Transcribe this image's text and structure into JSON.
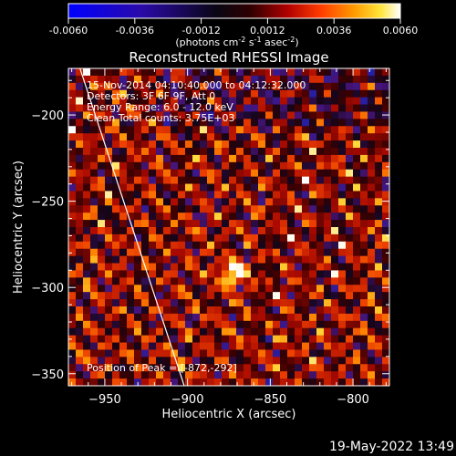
{
  "colorbar": {
    "ticks": [
      "-0.0060",
      "-0.0036",
      "-0.0012",
      "0.0012",
      "0.0036",
      "0.0060"
    ],
    "units_main": "(photons cm",
    "units_sup1": "-2",
    "units_s": " s",
    "units_sup2": "-1",
    "units_asec": " asec",
    "units_sup3": "-2",
    "units_close": ")",
    "range": [
      -0.006,
      0.006
    ],
    "colormap": "rhessi-blue-black-red-yellow-white"
  },
  "chart_data": {
    "type": "heatmap",
    "title": "Reconstructed RHESSI Image",
    "xlabel": "Heliocentric X (arcsec)",
    "ylabel": "Heliocentric Y (arcsec)",
    "xlim": [
      -972,
      -778
    ],
    "ylim": [
      -357,
      -173
    ],
    "x_ticks": [
      -950,
      -900,
      -850,
      -800
    ],
    "y_ticks": [
      -350,
      -300,
      -250,
      -200
    ],
    "annotations": [
      "15-Nov-2014 04:10:40.000 to 04:12:32.000",
      "Detectors: 3F 6F 9F, Att 0",
      "Energy Range: 6.0 - 12.0 keV",
      "Clean    Total counts: 3.75E+03"
    ],
    "peak_label": "Position of Peak = [-872,-292]",
    "peak": {
      "x": -872,
      "y": -292
    },
    "limb_line": {
      "x1": -965,
      "y1": -173,
      "x2": -902,
      "y2": -357
    }
  },
  "footer": {
    "timestamp": "19-May-2022 13:49"
  }
}
